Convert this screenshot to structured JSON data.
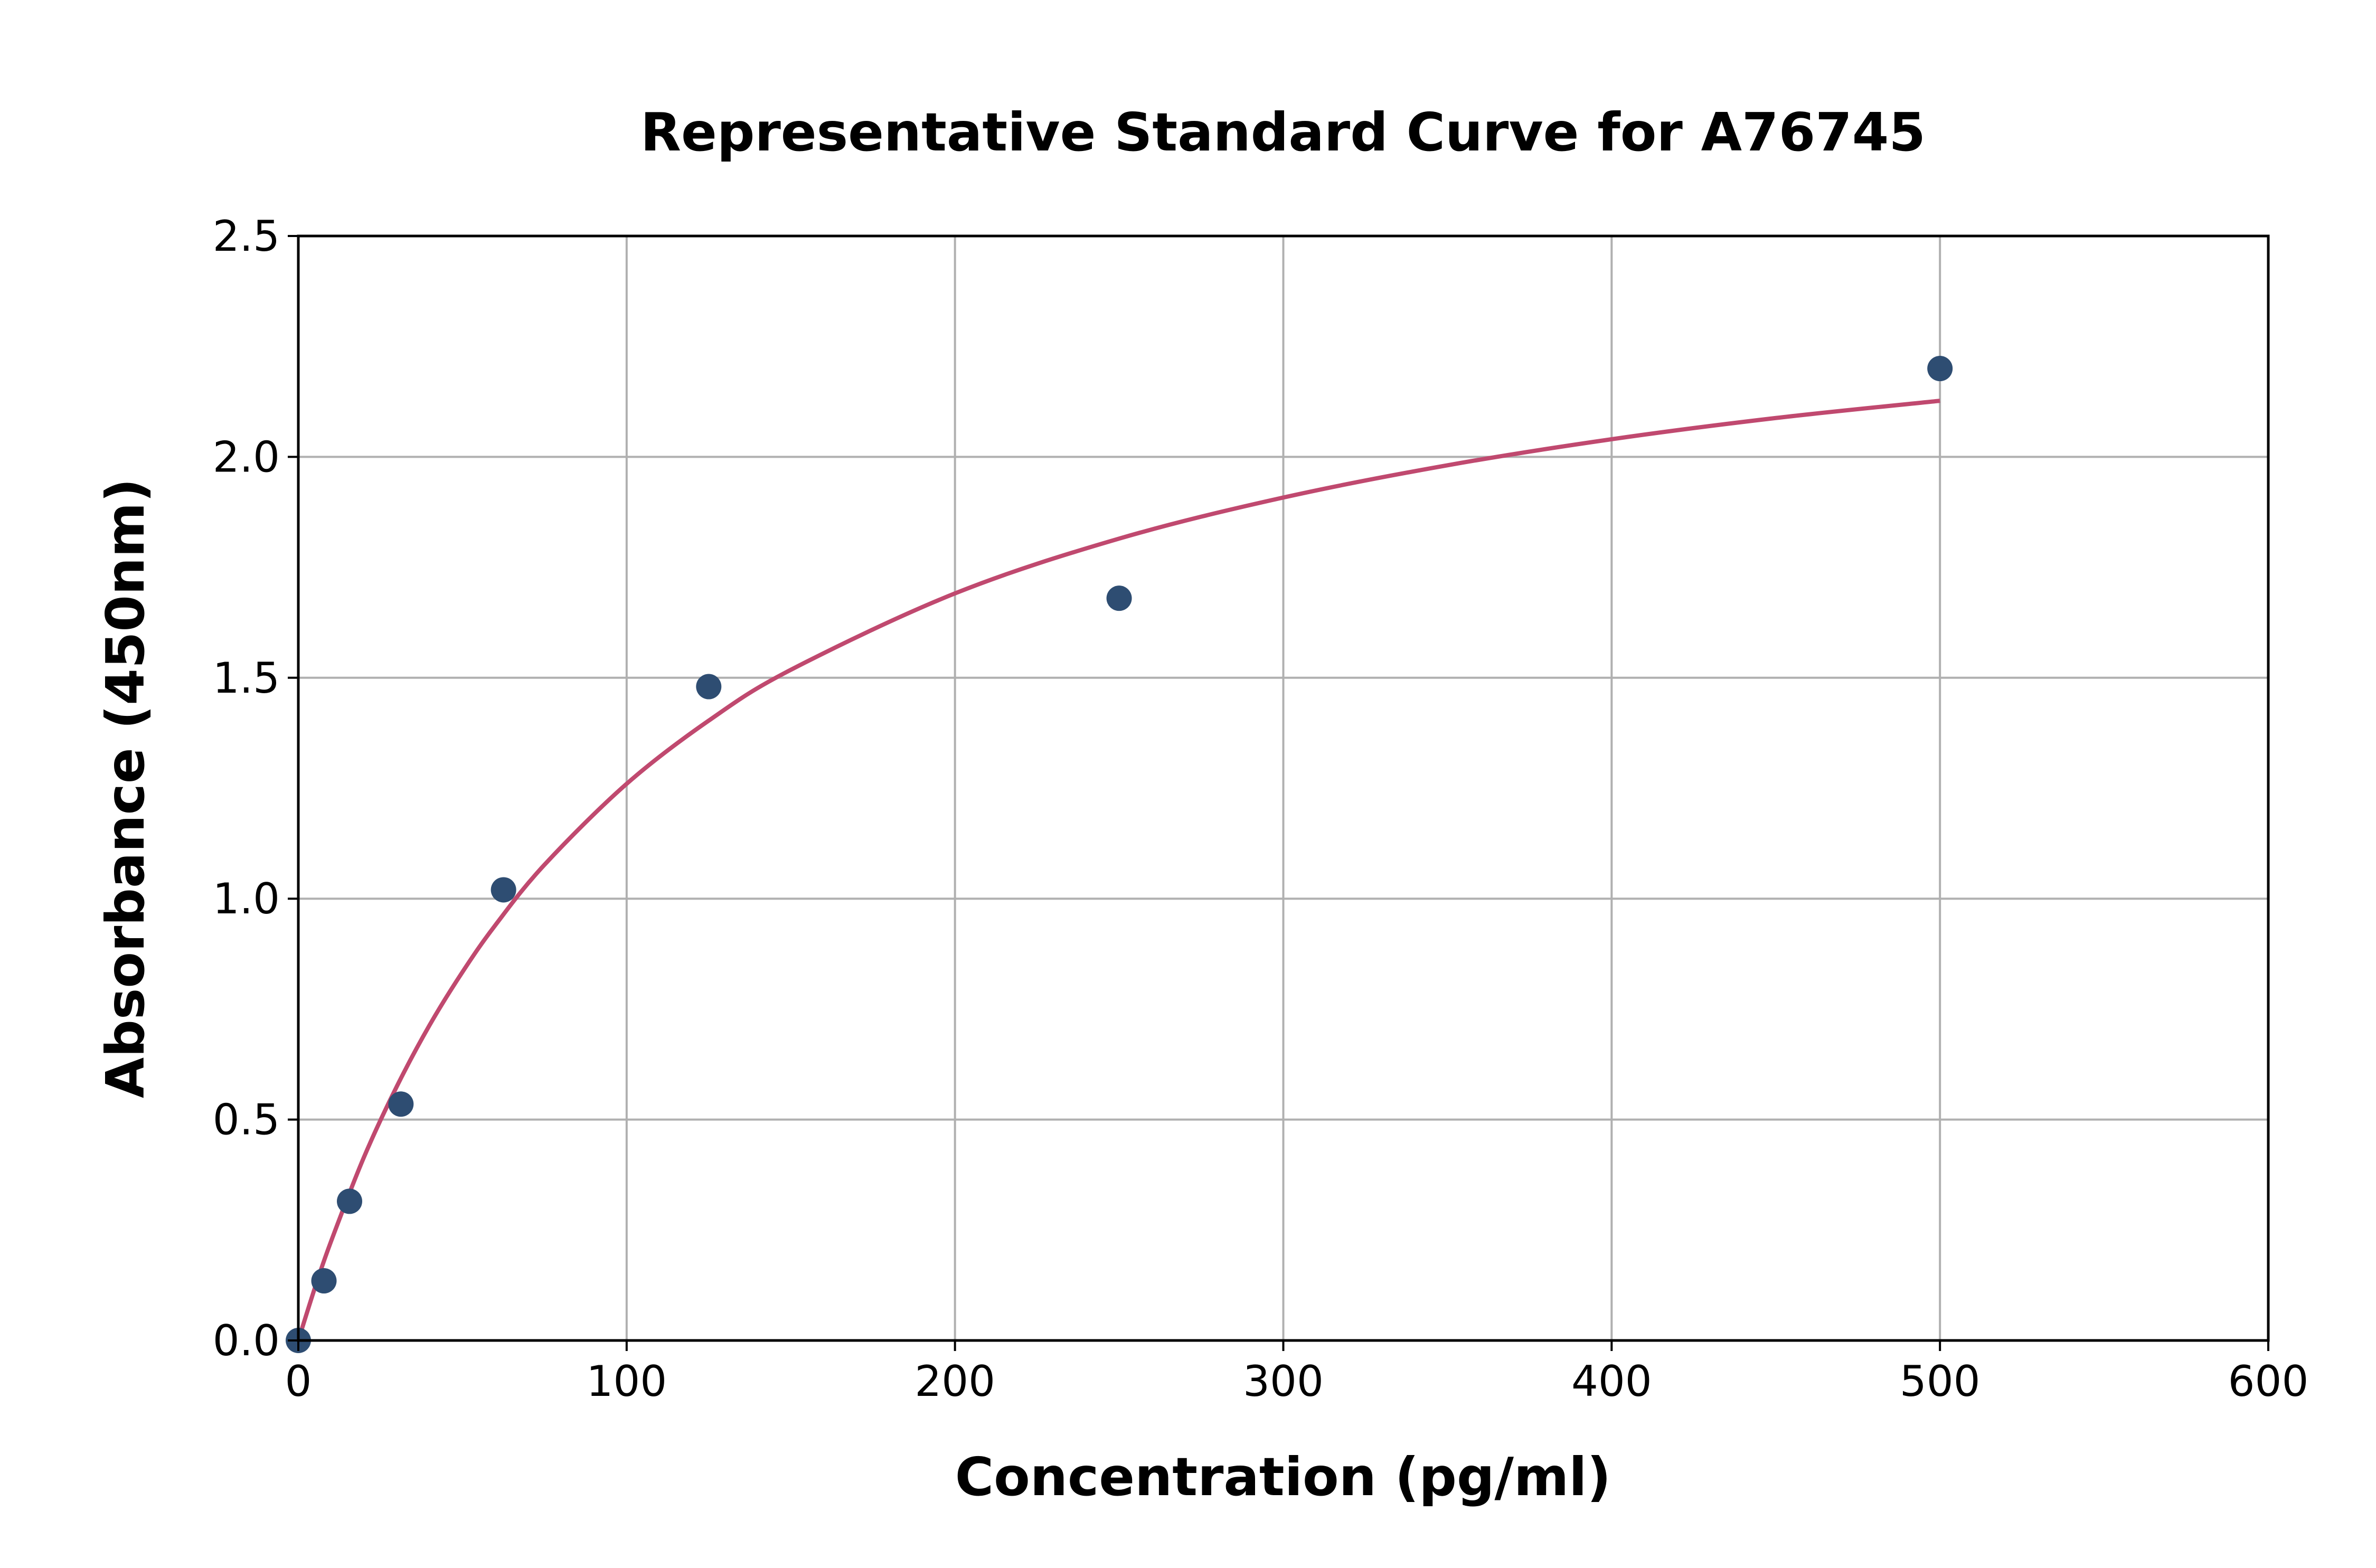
{
  "chart_data": {
    "type": "scatter",
    "title": "Representative Standard Curve for A76745",
    "xlabel": "Concentration (pg/ml)",
    "ylabel": "Absorbance (450nm)",
    "xlim": [
      0,
      600
    ],
    "ylim": [
      0,
      2.5
    ],
    "xticks": [
      "0",
      "100",
      "200",
      "300",
      "400",
      "500",
      "600"
    ],
    "yticks": [
      "0.0",
      "0.5",
      "1.0",
      "1.5",
      "2.0",
      "2.5"
    ],
    "grid": true,
    "points": {
      "x": [
        0,
        7.8,
        15.6,
        31.25,
        62.5,
        125,
        250,
        500
      ],
      "y": [
        0.0,
        0.135,
        0.315,
        0.535,
        1.02,
        1.48,
        1.68,
        2.2
      ],
      "color": "#2e4d72"
    },
    "fit_curve": {
      "x": [
        0,
        5,
        10,
        20,
        30,
        40,
        50,
        60,
        75,
        100,
        125,
        150,
        200,
        250,
        300,
        350,
        400,
        450,
        500
      ],
      "y": [
        0,
        0.118,
        0.225,
        0.415,
        0.575,
        0.714,
        0.834,
        0.94,
        1.077,
        1.26,
        1.403,
        1.518,
        1.691,
        1.815,
        1.908,
        1.981,
        2.04,
        2.088,
        2.127
      ],
      "color": "#c0496f"
    }
  }
}
